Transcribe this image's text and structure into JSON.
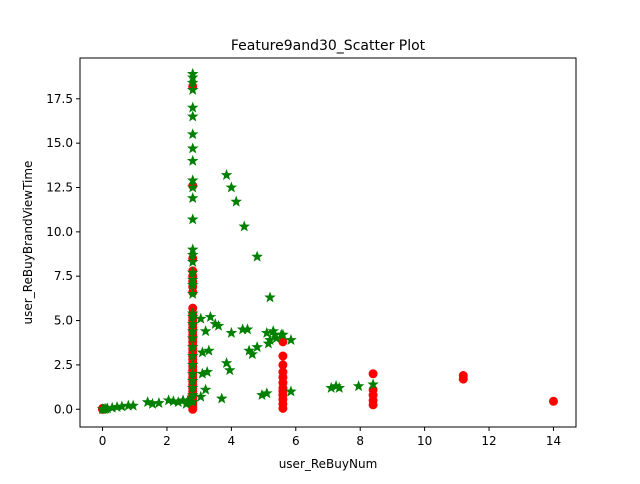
{
  "chart_data": {
    "type": "scatter",
    "title": "Feature9and30_Scatter Plot",
    "xlabel": "user_ReBuyNum",
    "ylabel": "user_ReBuyBrandViewTime",
    "xlim": [
      -0.7,
      14.7
    ],
    "ylim": [
      -1.0,
      19.8
    ],
    "xticks": [
      0,
      2,
      4,
      6,
      8,
      10,
      12,
      14
    ],
    "yticks": [
      0.0,
      2.5,
      5.0,
      7.5,
      10.0,
      12.5,
      15.0,
      17.5
    ],
    "ytick_labels": [
      "0.0",
      "2.5",
      "5.0",
      "7.5",
      "10.0",
      "12.5",
      "15.0",
      "17.5"
    ],
    "grid": false,
    "colors": {
      "series_red": "#ff0000",
      "series_green": "#008000"
    },
    "series": [
      {
        "marker": "circle",
        "color": "#ff0000",
        "points": [
          [
            0,
            0.0
          ],
          [
            0,
            0.02
          ],
          [
            0,
            0.05
          ],
          [
            0.02,
            0.0
          ],
          [
            2.8,
            0.0
          ],
          [
            2.8,
            0.1
          ],
          [
            2.8,
            0.2
          ],
          [
            2.8,
            0.3
          ],
          [
            2.8,
            0.45
          ],
          [
            2.8,
            0.6
          ],
          [
            2.8,
            0.8
          ],
          [
            2.8,
            1.0
          ],
          [
            2.8,
            1.2
          ],
          [
            2.8,
            1.4
          ],
          [
            2.8,
            1.6
          ],
          [
            2.8,
            1.8
          ],
          [
            2.8,
            2.0
          ],
          [
            2.8,
            2.2
          ],
          [
            2.8,
            2.4
          ],
          [
            2.8,
            2.6
          ],
          [
            2.8,
            2.8
          ],
          [
            2.8,
            3.0
          ],
          [
            2.8,
            3.2
          ],
          [
            2.8,
            3.4
          ],
          [
            2.8,
            3.6
          ],
          [
            2.8,
            3.8
          ],
          [
            2.8,
            4.0
          ],
          [
            2.8,
            4.2
          ],
          [
            2.8,
            4.4
          ],
          [
            2.8,
            4.6
          ],
          [
            2.8,
            4.8
          ],
          [
            2.8,
            5.0
          ],
          [
            2.8,
            5.2
          ],
          [
            2.8,
            5.4
          ],
          [
            2.8,
            5.7
          ],
          [
            2.8,
            6.6
          ],
          [
            2.8,
            6.9
          ],
          [
            2.8,
            7.2
          ],
          [
            2.8,
            7.5
          ],
          [
            2.8,
            7.8
          ],
          [
            2.8,
            8.5
          ],
          [
            2.8,
            12.6
          ],
          [
            2.8,
            18.2
          ],
          [
            5.6,
            0.05
          ],
          [
            5.6,
            0.3
          ],
          [
            5.6,
            0.55
          ],
          [
            5.6,
            0.8
          ],
          [
            5.6,
            1.0
          ],
          [
            5.6,
            1.2
          ],
          [
            5.6,
            1.5
          ],
          [
            5.6,
            1.8
          ],
          [
            5.6,
            2.1
          ],
          [
            5.6,
            2.5
          ],
          [
            5.6,
            3.0
          ],
          [
            5.6,
            3.8
          ],
          [
            8.4,
            0.25
          ],
          [
            8.4,
            0.5
          ],
          [
            8.4,
            0.8
          ],
          [
            8.4,
            1.1
          ],
          [
            8.4,
            2.0
          ],
          [
            11.2,
            1.7
          ],
          [
            11.2,
            1.9
          ],
          [
            14.0,
            0.45
          ]
        ]
      },
      {
        "marker": "star",
        "color": "#008000",
        "points": [
          [
            0,
            0.0
          ],
          [
            0.05,
            0.0
          ],
          [
            0.1,
            0.02
          ],
          [
            0.15,
            0.05
          ],
          [
            0.3,
            0.08
          ],
          [
            0.45,
            0.12
          ],
          [
            0.6,
            0.15
          ],
          [
            0.8,
            0.2
          ],
          [
            0.95,
            0.2
          ],
          [
            1.4,
            0.4
          ],
          [
            1.55,
            0.3
          ],
          [
            1.75,
            0.35
          ],
          [
            2.05,
            0.5
          ],
          [
            2.2,
            0.45
          ],
          [
            2.35,
            0.4
          ],
          [
            2.5,
            0.5
          ],
          [
            2.6,
            0.3
          ],
          [
            2.65,
            0.5
          ],
          [
            2.8,
            0.4
          ],
          [
            2.8,
            0.8
          ],
          [
            2.8,
            1.2
          ],
          [
            2.8,
            1.6
          ],
          [
            2.8,
            2.0
          ],
          [
            2.8,
            2.5
          ],
          [
            2.8,
            3.0
          ],
          [
            2.8,
            3.5
          ],
          [
            2.8,
            4.0
          ],
          [
            2.8,
            4.4
          ],
          [
            2.8,
            4.8
          ],
          [
            2.8,
            5.2
          ],
          [
            2.8,
            5.4
          ],
          [
            2.8,
            6.5
          ],
          [
            2.8,
            7.0
          ],
          [
            2.8,
            7.3
          ],
          [
            2.8,
            7.7
          ],
          [
            2.8,
            8.3
          ],
          [
            2.8,
            8.7
          ],
          [
            2.8,
            9.0
          ],
          [
            2.8,
            10.7
          ],
          [
            2.8,
            11.9
          ],
          [
            2.8,
            12.5
          ],
          [
            2.8,
            12.9
          ],
          [
            2.8,
            14.0
          ],
          [
            2.8,
            14.7
          ],
          [
            2.8,
            15.5
          ],
          [
            2.8,
            16.5
          ],
          [
            2.8,
            17.0
          ],
          [
            2.8,
            18.0
          ],
          [
            2.8,
            18.4
          ],
          [
            2.8,
            18.7
          ],
          [
            2.8,
            18.9
          ],
          [
            3.05,
            0.7
          ],
          [
            3.2,
            1.1
          ],
          [
            3.1,
            2.0
          ],
          [
            3.25,
            2.1
          ],
          [
            3.1,
            3.2
          ],
          [
            3.3,
            3.3
          ],
          [
            3.05,
            5.1
          ],
          [
            3.2,
            4.4
          ],
          [
            3.35,
            5.2
          ],
          [
            3.5,
            4.8
          ],
          [
            3.6,
            4.7
          ],
          [
            3.7,
            0.6
          ],
          [
            3.85,
            2.6
          ],
          [
            3.95,
            2.2
          ],
          [
            4.0,
            4.3
          ],
          [
            3.85,
            13.2
          ],
          [
            4.0,
            12.5
          ],
          [
            4.15,
            11.7
          ],
          [
            4.4,
            10.3
          ],
          [
            4.35,
            4.5
          ],
          [
            4.5,
            4.5
          ],
          [
            4.55,
            3.3
          ],
          [
            4.65,
            3.1
          ],
          [
            4.8,
            3.5
          ],
          [
            4.8,
            8.6
          ],
          [
            4.95,
            0.8
          ],
          [
            5.1,
            0.9
          ],
          [
            5.1,
            4.3
          ],
          [
            5.15,
            3.7
          ],
          [
            5.2,
            3.9
          ],
          [
            5.2,
            6.3
          ],
          [
            5.3,
            4.4
          ],
          [
            5.35,
            4.2
          ],
          [
            5.4,
            4.0
          ],
          [
            5.55,
            4.2
          ],
          [
            5.6,
            4.2
          ],
          [
            5.85,
            3.9
          ],
          [
            5.85,
            1.0
          ],
          [
            7.1,
            1.2
          ],
          [
            7.25,
            1.3
          ],
          [
            7.35,
            1.2
          ],
          [
            7.95,
            1.3
          ],
          [
            8.4,
            1.4
          ]
        ]
      }
    ]
  }
}
